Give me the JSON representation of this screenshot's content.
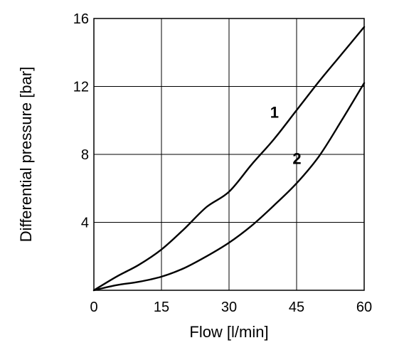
{
  "chart_data": {
    "type": "line",
    "title": "",
    "xlabel": "Flow [l/min]",
    "ylabel": "Differential pressure [bar]",
    "xlim": [
      0,
      60
    ],
    "ylim": [
      0,
      16
    ],
    "xticks": [
      0,
      15,
      30,
      45,
      60
    ],
    "yticks": [
      4,
      8,
      12,
      16
    ],
    "grid": true,
    "legend": "none",
    "series": [
      {
        "name": "1",
        "x": [
          0,
          5,
          10,
          15,
          20,
          25,
          30,
          35,
          40,
          45,
          50,
          55,
          60
        ],
        "y": [
          0,
          0.8,
          1.5,
          2.4,
          3.6,
          4.9,
          5.8,
          7.4,
          8.9,
          10.6,
          12.3,
          13.9,
          15.5
        ]
      },
      {
        "name": "2",
        "x": [
          0,
          5,
          10,
          15,
          20,
          25,
          30,
          35,
          40,
          45,
          50,
          55,
          60
        ],
        "y": [
          0,
          0.3,
          0.5,
          0.8,
          1.3,
          2.0,
          2.8,
          3.8,
          5.0,
          6.3,
          7.9,
          10.0,
          12.2
        ]
      }
    ]
  }
}
